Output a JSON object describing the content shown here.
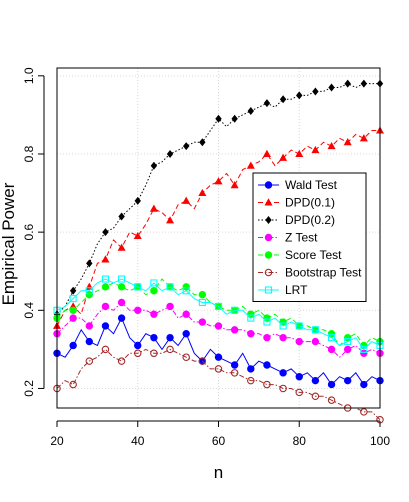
{
  "chart_data": {
    "type": "line",
    "title": "",
    "xlabel": "n",
    "ylabel": "Empirical Power",
    "xlim": [
      20,
      100
    ],
    "ylim": [
      0.15,
      1.02
    ],
    "xticks": [
      20,
      40,
      60,
      80,
      100
    ],
    "yticks": [
      0.2,
      0.4,
      0.6,
      0.8,
      1.0
    ],
    "ytick_labels": [
      "0.2",
      "0.4",
      "0.6",
      "0.8",
      "1.0"
    ],
    "grid": true,
    "legend_position": "right",
    "x": [
      20,
      22,
      24,
      26,
      28,
      30,
      32,
      34,
      36,
      38,
      40,
      42,
      44,
      46,
      48,
      50,
      52,
      54,
      56,
      58,
      60,
      62,
      64,
      66,
      68,
      70,
      72,
      74,
      76,
      78,
      80,
      82,
      84,
      86,
      88,
      90,
      92,
      94,
      96,
      98,
      100
    ],
    "series": [
      {
        "name": "Wald Test",
        "color": "#0000ff",
        "marker": "filled-circle",
        "line": "solid",
        "values": [
          0.29,
          0.28,
          0.31,
          0.35,
          0.32,
          0.31,
          0.36,
          0.34,
          0.38,
          0.33,
          0.31,
          0.34,
          0.33,
          0.3,
          0.33,
          0.31,
          0.34,
          0.29,
          0.27,
          0.3,
          0.28,
          0.27,
          0.26,
          0.29,
          0.25,
          0.27,
          0.26,
          0.25,
          0.24,
          0.25,
          0.23,
          0.24,
          0.22,
          0.24,
          0.21,
          0.23,
          0.22,
          0.24,
          0.21,
          0.23,
          0.22
        ]
      },
      {
        "name": "DPD(0.1)",
        "color": "#ff0000",
        "marker": "filled-triangle",
        "line": "dashed",
        "values": [
          0.36,
          0.4,
          0.41,
          0.39,
          0.46,
          0.52,
          0.53,
          0.58,
          0.56,
          0.6,
          0.59,
          0.62,
          0.66,
          0.65,
          0.63,
          0.67,
          0.68,
          0.66,
          0.7,
          0.72,
          0.73,
          0.75,
          0.72,
          0.76,
          0.77,
          0.78,
          0.8,
          0.77,
          0.79,
          0.81,
          0.8,
          0.82,
          0.81,
          0.83,
          0.82,
          0.84,
          0.83,
          0.85,
          0.84,
          0.86,
          0.86
        ]
      },
      {
        "name": "DPD(0.2)",
        "color": "#000000",
        "marker": "filled-diamond",
        "line": "dotted",
        "values": [
          0.39,
          0.41,
          0.45,
          0.48,
          0.52,
          0.57,
          0.6,
          0.61,
          0.64,
          0.66,
          0.68,
          0.72,
          0.77,
          0.78,
          0.8,
          0.81,
          0.82,
          0.83,
          0.83,
          0.86,
          0.89,
          0.87,
          0.89,
          0.9,
          0.91,
          0.92,
          0.93,
          0.92,
          0.94,
          0.94,
          0.95,
          0.95,
          0.96,
          0.96,
          0.97,
          0.97,
          0.98,
          0.97,
          0.98,
          0.98,
          0.98
        ]
      },
      {
        "name": "Z Test",
        "color": "#ff00ff",
        "marker": "filled-circle",
        "line": "dashdot",
        "values": [
          0.34,
          0.36,
          0.38,
          0.38,
          0.36,
          0.39,
          0.41,
          0.4,
          0.42,
          0.4,
          0.4,
          0.4,
          0.39,
          0.4,
          0.41,
          0.38,
          0.39,
          0.37,
          0.37,
          0.36,
          0.36,
          0.35,
          0.35,
          0.35,
          0.34,
          0.34,
          0.33,
          0.34,
          0.33,
          0.33,
          0.32,
          0.32,
          0.32,
          0.31,
          0.3,
          0.28,
          0.3,
          0.31,
          0.29,
          0.3,
          0.29
        ]
      },
      {
        "name": "Score Test",
        "color": "#00ff00",
        "marker": "filled-circle",
        "line": "dashed",
        "values": [
          0.38,
          0.4,
          0.4,
          0.42,
          0.44,
          0.45,
          0.46,
          0.47,
          0.46,
          0.45,
          0.46,
          0.44,
          0.45,
          0.48,
          0.46,
          0.45,
          0.46,
          0.44,
          0.44,
          0.42,
          0.41,
          0.4,
          0.4,
          0.41,
          0.39,
          0.4,
          0.38,
          0.39,
          0.37,
          0.38,
          0.36,
          0.36,
          0.35,
          0.35,
          0.34,
          0.31,
          0.33,
          0.34,
          0.31,
          0.33,
          0.32
        ]
      },
      {
        "name": "Bootstrap Test",
        "color": "#a52a2a",
        "marker": "open-circle",
        "line": "dashdot",
        "values": [
          0.2,
          0.22,
          0.21,
          0.25,
          0.27,
          0.28,
          0.3,
          0.28,
          0.27,
          0.29,
          0.29,
          0.3,
          0.29,
          0.29,
          0.3,
          0.29,
          0.28,
          0.27,
          0.27,
          0.25,
          0.25,
          0.24,
          0.24,
          0.23,
          0.22,
          0.22,
          0.21,
          0.21,
          0.2,
          0.2,
          0.19,
          0.19,
          0.18,
          0.18,
          0.17,
          0.16,
          0.15,
          0.15,
          0.14,
          0.14,
          0.12
        ]
      },
      {
        "name": "LRT",
        "color": "#00ffff",
        "marker": "open-square",
        "line": "solid",
        "values": [
          0.4,
          0.41,
          0.43,
          0.45,
          0.45,
          0.47,
          0.48,
          0.47,
          0.48,
          0.47,
          0.46,
          0.45,
          0.47,
          0.45,
          0.46,
          0.44,
          0.45,
          0.43,
          0.42,
          0.42,
          0.41,
          0.39,
          0.4,
          0.4,
          0.38,
          0.39,
          0.37,
          0.38,
          0.36,
          0.37,
          0.36,
          0.35,
          0.35,
          0.34,
          0.33,
          0.31,
          0.32,
          0.33,
          0.3,
          0.32,
          0.31
        ]
      }
    ]
  }
}
